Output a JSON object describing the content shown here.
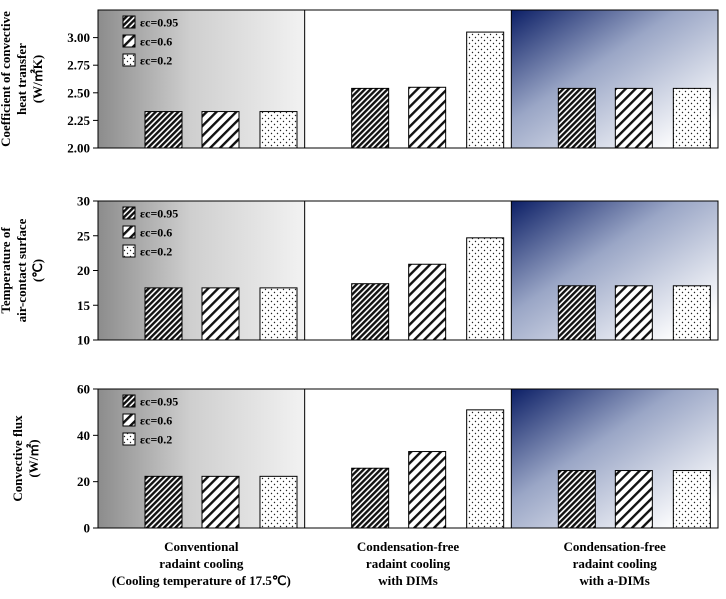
{
  "chart_data": {
    "type": "bar",
    "legend": {
      "placement": "top-left",
      "entries": [
        "εc=0.95",
        "εc=0.6",
        "εc=0.2"
      ]
    },
    "categories": [
      {
        "lines": [
          "Conventional",
          "radaint cooling",
          "(Cooling temperature of 17.5℃)"
        ]
      },
      {
        "lines": [
          "Condensation-free",
          "radaint cooling",
          "with DIMs"
        ]
      },
      {
        "lines": [
          "Condensation-free",
          "radaint cooling",
          "with a-DIMs"
        ]
      }
    ],
    "panels": [
      {
        "ylabel_lines": [
          "Coefficient of convective",
          "heat transfer",
          "(W/㎡K)"
        ],
        "ylim": [
          2.0,
          3.25
        ],
        "yticks": [
          "2.00",
          "2.25",
          "2.50",
          "2.75",
          "3.00"
        ],
        "series": [
          {
            "name": "εc=0.95",
            "values": [
              2.33,
              2.54,
              2.54
            ]
          },
          {
            "name": "εc=0.6",
            "values": [
              2.33,
              2.55,
              2.54
            ]
          },
          {
            "name": "εc=0.2",
            "values": [
              2.33,
              3.05,
              2.54
            ]
          }
        ]
      },
      {
        "ylabel_lines": [
          "Temperature of",
          "air-contact surface",
          "(℃)"
        ],
        "ylim": [
          10,
          30
        ],
        "yticks": [
          "10",
          "15",
          "20",
          "25",
          "30"
        ],
        "series": [
          {
            "name": "εc=0.95",
            "values": [
              17.5,
              18.1,
              17.8
            ]
          },
          {
            "name": "εc=0.6",
            "values": [
              17.5,
              20.9,
              17.8
            ]
          },
          {
            "name": "εc=0.2",
            "values": [
              17.5,
              24.7,
              17.8
            ]
          }
        ]
      },
      {
        "ylabel_lines": [
          "Convective flux",
          "(W/㎡)"
        ],
        "ylim": [
          0,
          60
        ],
        "yticks": [
          "0",
          "20",
          "40",
          "60"
        ],
        "series": [
          {
            "name": "εc=0.95",
            "values": [
              22.3,
              25.8,
              24.8
            ]
          },
          {
            "name": "εc=0.6",
            "values": [
              22.3,
              33.0,
              24.8
            ]
          },
          {
            "name": "εc=0.2",
            "values": [
              22.3,
              51.0,
              24.8
            ]
          }
        ]
      }
    ]
  }
}
